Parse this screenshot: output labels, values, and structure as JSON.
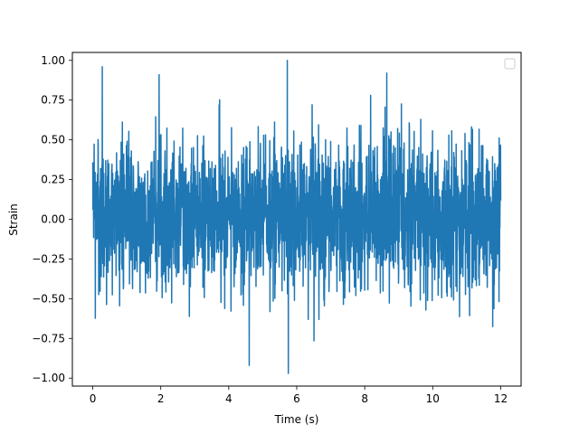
{
  "chart_data": {
    "type": "line",
    "title": "",
    "xlabel": "Time (s)",
    "ylabel": "Strain",
    "xlim": [
      -0.6,
      12.6
    ],
    "ylim": [
      -1.05,
      1.05
    ],
    "x_ticks": [
      0,
      2,
      4,
      6,
      8,
      10,
      12
    ],
    "x_tick_labels": [
      "0",
      "2",
      "4",
      "6",
      "8",
      "10",
      "12"
    ],
    "y_ticks": [
      -1.0,
      -0.75,
      -0.5,
      -0.25,
      0.0,
      0.25,
      0.5,
      0.75,
      1.0
    ],
    "y_tick_labels": [
      "−1.00",
      "−0.75",
      "−0.50",
      "−0.25",
      "0.00",
      "0.25",
      "0.50",
      "0.75",
      "1.00"
    ],
    "grid": false,
    "legend": {
      "placement": "top-right",
      "entries": []
    },
    "series": [
      {
        "color": "#1f77b4",
        "x_start": 0.0,
        "x_end": 12.0,
        "n_points": 2400,
        "envelope_approx": [
          -0.97,
          1.0
        ],
        "extremes": [
          {
            "x": 0.28,
            "y": 0.96
          },
          {
            "x": 1.95,
            "y": 0.91
          },
          {
            "x": 5.72,
            "y": 1.0
          },
          {
            "x": 5.75,
            "y": -0.97
          },
          {
            "x": 8.65,
            "y": 0.92
          },
          {
            "x": 4.6,
            "y": -0.92
          }
        ]
      }
    ]
  },
  "colors": {
    "line": "#1f77b4",
    "axes": "#000000",
    "background": "#ffffff"
  }
}
